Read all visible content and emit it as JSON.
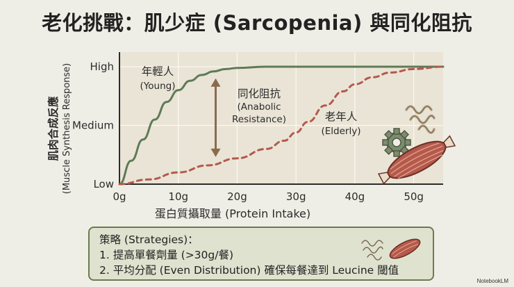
{
  "title": "老化挑戰：肌少症 (Sarcopenia) 與同化阻抗",
  "chart_data": {
    "type": "line",
    "title": "老化挑戰：肌少症 (Sarcopenia) 與同化阻抗",
    "xlabel": "蛋白質攝取量 (Protein Intake)",
    "ylabel_line1": "肌肉合成反應",
    "ylabel_line2": "(Muscle Synthesis Response)",
    "x_ticks": [
      "0g",
      "10g",
      "20g",
      "30g",
      "40g",
      "50g"
    ],
    "x_tick_values": [
      0,
      10,
      20,
      30,
      40,
      50
    ],
    "y_ticks": [
      "Low",
      "Medium",
      "High"
    ],
    "y_tick_values": [
      0,
      0.5,
      1
    ],
    "xlim": [
      0,
      55
    ],
    "ylim": [
      0,
      1
    ],
    "grid": true,
    "colors": {
      "young": "#5e7a56",
      "elderly": "#b4594c",
      "arrow": "#8b6a4e",
      "bg": "#e9e4d6"
    },
    "series": [
      {
        "label_line1": "年輕人",
        "label_line2": "(Young)",
        "style": "solid",
        "x": [
          0,
          2,
          4,
          6,
          8,
          10,
          12,
          14,
          16,
          18,
          20,
          25,
          30,
          35,
          40,
          45,
          50,
          55
        ],
        "y": [
          0,
          0.2,
          0.38,
          0.55,
          0.7,
          0.8,
          0.88,
          0.93,
          0.96,
          0.98,
          0.99,
          1.0,
          1.0,
          1.0,
          1.0,
          1.0,
          1.0,
          1.0
        ]
      },
      {
        "label_line1": "老年人",
        "label_line2": "(Elderly)",
        "style": "dashed",
        "x": [
          0,
          5,
          10,
          15,
          20,
          25,
          28,
          30,
          32,
          35,
          38,
          40,
          43,
          46,
          50,
          55
        ],
        "y": [
          0,
          0.04,
          0.1,
          0.16,
          0.22,
          0.3,
          0.37,
          0.44,
          0.53,
          0.67,
          0.79,
          0.85,
          0.91,
          0.95,
          0.98,
          1.0
        ]
      }
    ],
    "annotation": {
      "text_line1": "同化阻抗",
      "text_line2": "(Anabolic",
      "text_line3": "Resistance)",
      "x": 18,
      "y_top": 0.96,
      "y_bottom": 0.22
    }
  },
  "strategies": {
    "heading": "策略 (Strategies)：",
    "item1": "1. 提高單餐劑量 (>30g/餐)",
    "item2": "2. 平均分配 (Even Distribution) 確保每餐達到 Leucine 閾值"
  },
  "icons": [
    "protein-strands-icon",
    "gear-icon",
    "muscle-icon"
  ],
  "watermark": "NotebookLM"
}
